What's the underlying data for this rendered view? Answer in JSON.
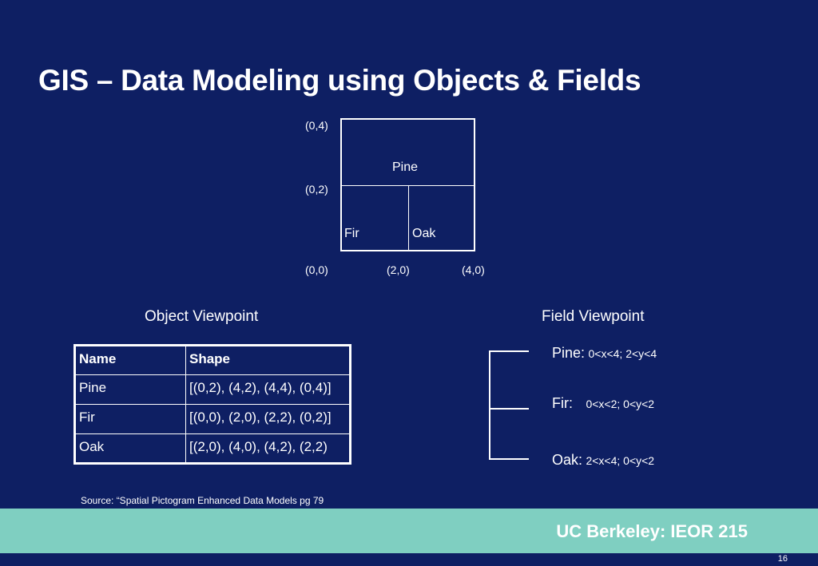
{
  "slide": {
    "title": "GIS – Data Modeling using Objects & Fields",
    "source": "Source: “Spatial Pictogram Enhanced Data Models pg 79",
    "footer": "UC Berkeley: IEOR 215",
    "page_number": "16"
  },
  "diagram": {
    "coords": {
      "y_top": "(0,4)",
      "y_mid": "(0,2)",
      "origin": "(0,0)",
      "x_mid": "(2,0)",
      "x_right": "(4,0)"
    },
    "regions": {
      "pine": "Pine",
      "fir": "Fir",
      "oak": "Oak"
    }
  },
  "object_viewpoint": {
    "heading": "Object Viewpoint",
    "columns": [
      "Name",
      "Shape"
    ],
    "rows": [
      [
        "Pine",
        "[(0,2), (4,2), (4,4), (0,4)]"
      ],
      [
        "Fir",
        "[(0,0), (2,0), (2,2), (0,2)]"
      ],
      [
        "Oak",
        "[(2,0), (4,0), (4,2), (2,2)"
      ]
    ]
  },
  "field_viewpoint": {
    "heading": "Field Viewpoint",
    "items": [
      {
        "name": "Pine:",
        "condition": "0<x<4;  2<y<4"
      },
      {
        "name": "Fir:",
        "condition": "0<x<2;   0<y<2"
      },
      {
        "name": "Oak:",
        "condition": "2<x<4;  0<y<2"
      }
    ]
  },
  "colors": {
    "background": "#0e1f63",
    "footer_band": "#7fcfc1",
    "text": "#ffffff"
  }
}
